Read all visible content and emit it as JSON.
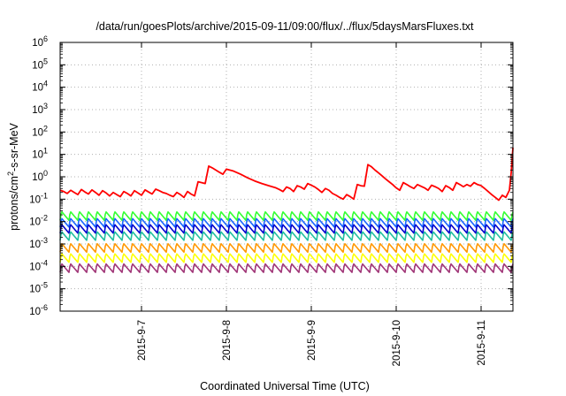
{
  "chart_data": {
    "type": "line",
    "title": "/data/run/goesPlots/archive/2015-09-11/09:00/flux/../flux/5daysMarsFluxes.txt",
    "xlabel": "Coordinated Universal Time (UTC)",
    "ylabel": "protons/cm2-s-sr-MeV",
    "ylabel_parts": {
      "main": "protons/cm",
      "sup": "2",
      "rest": "-s-sr-MeV"
    },
    "yscale": "log",
    "ylim": [
      1e-06,
      1000000.0
    ],
    "xlim": [
      "2015-09-06T01:00",
      "2015-09-11T09:00"
    ],
    "grid": true,
    "legend": "none",
    "ytick_values": [
      1e-06,
      1e-05,
      0.0001,
      0.001,
      0.01,
      0.1,
      1.0,
      10.0,
      100.0,
      1000.0,
      10000.0,
      100000.0,
      1000000.0
    ],
    "ytick_labels": [
      {
        "base": "10",
        "exp": "-6"
      },
      {
        "base": "10",
        "exp": "-5"
      },
      {
        "base": "10",
        "exp": "-4"
      },
      {
        "base": "10",
        "exp": "-3"
      },
      {
        "base": "10",
        "exp": "-2"
      },
      {
        "base": "10",
        "exp": "-1"
      },
      {
        "base": "10",
        "exp": "0"
      },
      {
        "base": "10",
        "exp": "1"
      },
      {
        "base": "10",
        "exp": "2"
      },
      {
        "base": "10",
        "exp": "3"
      },
      {
        "base": "10",
        "exp": "4"
      },
      {
        "base": "10",
        "exp": "5"
      },
      {
        "base": "10",
        "exp": "6"
      }
    ],
    "xtick_values": [
      "2015-09-07T00:00",
      "2015-09-08T00:00",
      "2015-09-09T00:00",
      "2015-09-10T00:00",
      "2015-09-11T00:00"
    ],
    "xtick_labels": [
      "2015-9-7",
      "2015-9-8",
      "2015-9-9",
      "2015-9-10",
      "2015-9-11"
    ],
    "series": [
      {
        "color": "#ff0000",
        "points": [
          [
            "2015-09-06T01:00",
            0.25
          ],
          [
            "2015-09-06T02:00",
            0.22
          ],
          [
            "2015-09-06T03:00",
            0.18
          ],
          [
            "2015-09-06T04:00",
            0.25
          ],
          [
            "2015-09-06T05:00",
            0.2
          ],
          [
            "2015-09-06T06:00",
            0.16
          ],
          [
            "2015-09-06T07:00",
            0.27
          ],
          [
            "2015-09-06T08:00",
            0.21
          ],
          [
            "2015-09-06T09:00",
            0.17
          ],
          [
            "2015-09-06T10:00",
            0.26
          ],
          [
            "2015-09-06T11:00",
            0.2
          ],
          [
            "2015-09-06T12:00",
            0.15
          ],
          [
            "2015-09-06T13:00",
            0.24
          ],
          [
            "2015-09-06T14:00",
            0.19
          ],
          [
            "2015-09-06T15:00",
            0.14
          ],
          [
            "2015-09-06T16:00",
            0.2
          ],
          [
            "2015-09-06T17:00",
            0.16
          ],
          [
            "2015-09-06T18:00",
            0.13
          ],
          [
            "2015-09-06T19:00",
            0.22
          ],
          [
            "2015-09-06T20:00",
            0.18
          ],
          [
            "2015-09-06T21:00",
            0.14
          ],
          [
            "2015-09-06T22:00",
            0.24
          ],
          [
            "2015-09-06T23:00",
            0.19
          ],
          [
            "2015-09-07T00:00",
            0.15
          ],
          [
            "2015-09-07T01:00",
            0.26
          ],
          [
            "2015-09-07T02:00",
            0.21
          ],
          [
            "2015-09-07T03:00",
            0.17
          ],
          [
            "2015-09-07T04:00",
            0.28
          ],
          [
            "2015-09-07T05:00",
            0.24
          ],
          [
            "2015-09-07T06:00",
            0.2
          ],
          [
            "2015-09-07T07:00",
            0.18
          ],
          [
            "2015-09-07T08:00",
            0.15
          ],
          [
            "2015-09-07T09:00",
            0.13
          ],
          [
            "2015-09-07T10:00",
            0.2
          ],
          [
            "2015-09-07T11:00",
            0.16
          ],
          [
            "2015-09-07T12:00",
            0.12
          ],
          [
            "2015-09-07T13:00",
            0.22
          ],
          [
            "2015-09-07T14:00",
            0.17
          ],
          [
            "2015-09-07T15:00",
            0.14
          ],
          [
            "2015-09-07T16:00",
            0.6
          ],
          [
            "2015-09-07T17:00",
            0.55
          ],
          [
            "2015-09-07T18:00",
            0.5
          ],
          [
            "2015-09-07T19:00",
            3.0
          ],
          [
            "2015-09-07T20:00",
            2.5
          ],
          [
            "2015-09-07T21:00",
            2.0
          ],
          [
            "2015-09-07T22:00",
            1.6
          ],
          [
            "2015-09-07T23:00",
            1.3
          ],
          [
            "2015-09-08T00:00",
            2.2
          ],
          [
            "2015-09-08T02:00",
            1.8
          ],
          [
            "2015-09-08T04:00",
            1.3
          ],
          [
            "2015-09-08T06:00",
            0.9
          ],
          [
            "2015-09-08T08:00",
            0.65
          ],
          [
            "2015-09-08T10:00",
            0.5
          ],
          [
            "2015-09-08T12:00",
            0.4
          ],
          [
            "2015-09-08T14:00",
            0.32
          ],
          [
            "2015-09-08T15:00",
            0.27
          ],
          [
            "2015-09-08T16:00",
            0.22
          ],
          [
            "2015-09-08T17:00",
            0.35
          ],
          [
            "2015-09-08T18:00",
            0.3
          ],
          [
            "2015-09-08T19:00",
            0.22
          ],
          [
            "2015-09-08T20:00",
            0.4
          ],
          [
            "2015-09-08T21:00",
            0.35
          ],
          [
            "2015-09-08T22:00",
            0.28
          ],
          [
            "2015-09-08T23:00",
            0.5
          ],
          [
            "2015-09-09T00:00",
            0.42
          ],
          [
            "2015-09-09T01:00",
            0.35
          ],
          [
            "2015-09-09T02:00",
            0.27
          ],
          [
            "2015-09-09T03:00",
            0.2
          ],
          [
            "2015-09-09T04:00",
            0.3
          ],
          [
            "2015-09-09T05:00",
            0.25
          ],
          [
            "2015-09-09T06:00",
            0.18
          ],
          [
            "2015-09-09T07:00",
            0.15
          ],
          [
            "2015-09-09T08:00",
            0.12
          ],
          [
            "2015-09-09T09:00",
            0.1
          ],
          [
            "2015-09-09T10:00",
            0.16
          ],
          [
            "2015-09-09T11:00",
            0.13
          ],
          [
            "2015-09-09T12:00",
            0.1
          ],
          [
            "2015-09-09T13:00",
            0.45
          ],
          [
            "2015-09-09T14:00",
            0.4
          ],
          [
            "2015-09-09T15:00",
            0.38
          ],
          [
            "2015-09-09T16:00",
            3.5
          ],
          [
            "2015-09-09T17:00",
            2.8
          ],
          [
            "2015-09-09T18:00",
            2.0
          ],
          [
            "2015-09-09T19:00",
            1.5
          ],
          [
            "2015-09-09T20:00",
            1.1
          ],
          [
            "2015-09-09T21:00",
            0.8
          ],
          [
            "2015-09-09T22:00",
            0.6
          ],
          [
            "2015-09-09T23:00",
            0.45
          ],
          [
            "2015-09-10T00:00",
            0.32
          ],
          [
            "2015-09-10T01:00",
            0.25
          ],
          [
            "2015-09-10T02:00",
            0.55
          ],
          [
            "2015-09-10T03:00",
            0.45
          ],
          [
            "2015-09-10T04:00",
            0.36
          ],
          [
            "2015-09-10T05:00",
            0.3
          ],
          [
            "2015-09-10T06:00",
            0.45
          ],
          [
            "2015-09-10T07:00",
            0.38
          ],
          [
            "2015-09-10T08:00",
            0.32
          ],
          [
            "2015-09-10T09:00",
            0.25
          ],
          [
            "2015-09-10T10:00",
            0.42
          ],
          [
            "2015-09-10T11:00",
            0.36
          ],
          [
            "2015-09-10T12:00",
            0.3
          ],
          [
            "2015-09-10T13:00",
            0.22
          ],
          [
            "2015-09-10T14:00",
            0.4
          ],
          [
            "2015-09-10T15:00",
            0.33
          ],
          [
            "2015-09-10T16:00",
            0.25
          ],
          [
            "2015-09-10T17:00",
            0.55
          ],
          [
            "2015-09-10T18:00",
            0.45
          ],
          [
            "2015-09-10T19:00",
            0.36
          ],
          [
            "2015-09-10T20:00",
            0.45
          ],
          [
            "2015-09-10T21:00",
            0.38
          ],
          [
            "2015-09-10T22:00",
            0.55
          ],
          [
            "2015-09-10T23:00",
            0.45
          ],
          [
            "2015-09-11T00:00",
            0.4
          ],
          [
            "2015-09-11T01:00",
            0.3
          ],
          [
            "2015-09-11T02:00",
            0.22
          ],
          [
            "2015-09-11T03:00",
            0.16
          ],
          [
            "2015-09-11T04:00",
            0.12
          ],
          [
            "2015-09-11T05:00",
            0.09
          ],
          [
            "2015-09-11T06:00",
            0.15
          ],
          [
            "2015-09-11T07:00",
            0.12
          ],
          [
            "2015-09-11T08:00",
            0.25
          ],
          [
            "2015-09-11T08:30",
            1.5
          ],
          [
            "2015-09-11T09:00",
            20
          ]
        ]
      },
      {
        "color": "#33ff33",
        "base": 0.018,
        "amp": 2.5
      },
      {
        "color": "#1a66ff",
        "base": 0.009,
        "amp": 2.5
      },
      {
        "color": "#0000cc",
        "base": 0.0048,
        "amp": 2.5
      },
      {
        "color": "#22c0a0",
        "base": 0.0023,
        "amp": 2.5
      },
      {
        "color": "#ff9900",
        "base": 0.00068,
        "amp": 2.5
      },
      {
        "color": "#ffff00",
        "base": 0.00024,
        "amp": 2.5
      },
      {
        "color": "#a03577",
        "base": 8.5e-05,
        "amp": 2.5
      }
    ]
  }
}
